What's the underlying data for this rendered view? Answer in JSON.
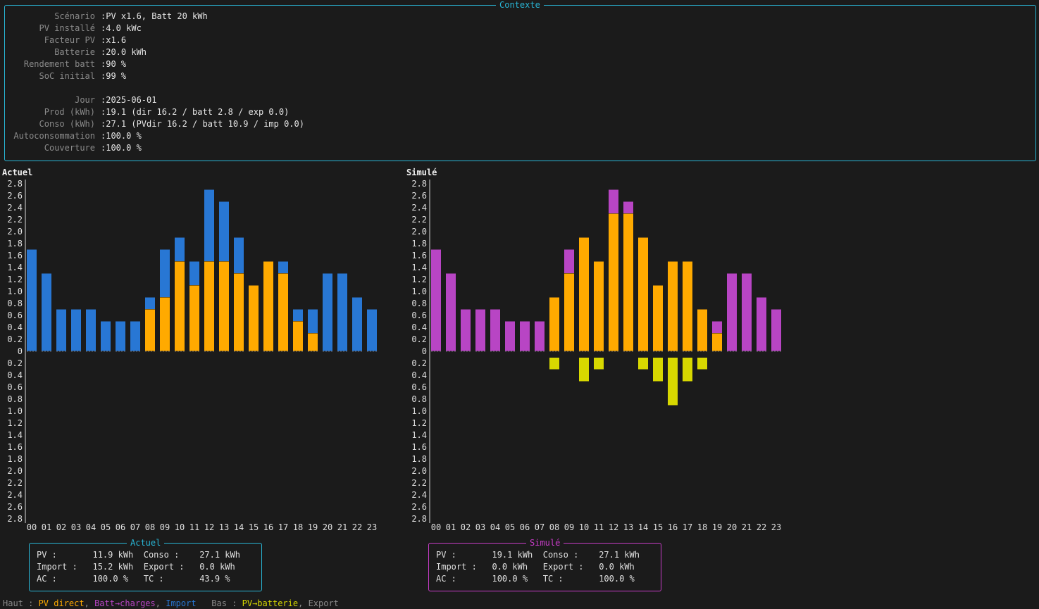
{
  "context": {
    "title": "Contexte",
    "rows": [
      {
        "label": "Scénario",
        "value": ":PV x1.6, Batt 20 kWh"
      },
      {
        "label": "PV installé",
        "value": ":4.0 kWc"
      },
      {
        "label": "Facteur PV",
        "value": ":x1.6"
      },
      {
        "label": "Batterie",
        "value": ":20.0 kWh"
      },
      {
        "label": "Rendement batt",
        "value": ":90 %"
      },
      {
        "label": "SoC initial",
        "value": ":99 %"
      },
      {
        "label": "",
        "value": ""
      },
      {
        "label": "Jour",
        "value": ":2025-06-01"
      },
      {
        "label": "Prod (kWh)",
        "value": ":19.1 (dir 16.2 / batt 2.8 / exp 0.0)"
      },
      {
        "label": "Conso (kWh)",
        "value": ":27.1 (PVdir 16.2 / batt 10.9 / imp 0.0)"
      },
      {
        "label": "Autoconsommation",
        "value": ":100.0 %"
      },
      {
        "label": "Couverture",
        "value": ":100.0 %"
      }
    ]
  },
  "colors": {
    "pv_direct": "#ffaa00",
    "batt_charges": "#b845c4",
    "import": "#2877d4",
    "pv_batterie": "#d8d800",
    "export": "#8a8a8a",
    "accent_actuel": "#29b6d6",
    "accent_simule": "#c83cc8"
  },
  "chart_data": [
    {
      "type": "bar",
      "title": "Actuel",
      "categories": [
        "00",
        "01",
        "02",
        "03",
        "04",
        "05",
        "06",
        "07",
        "08",
        "09",
        "10",
        "11",
        "12",
        "13",
        "14",
        "15",
        "16",
        "17",
        "18",
        "19",
        "20",
        "21",
        "22",
        "23"
      ],
      "ylim": [
        -2.8,
        2.8
      ],
      "y_ticks": [
        "2.8",
        "2.6",
        "2.4",
        "2.2",
        "2.0",
        "1.8",
        "1.6",
        "1.4",
        "1.2",
        "1.0",
        "0.8",
        "0.6",
        "0.4",
        "0.2",
        "0",
        "0.2",
        "0.4",
        "0.6",
        "0.8",
        "1.0",
        "1.2",
        "1.4",
        "1.6",
        "1.8",
        "2.0",
        "2.2",
        "2.4",
        "2.6",
        "2.8"
      ],
      "series": [
        {
          "name": "PV direct",
          "key": "pv_direct",
          "values": [
            0,
            0,
            0,
            0,
            0,
            0,
            0,
            0,
            0.7,
            0.9,
            1.5,
            1.1,
            1.5,
            1.5,
            1.3,
            1.1,
            1.5,
            1.3,
            0.5,
            0.3,
            0,
            0,
            0,
            0
          ]
        },
        {
          "name": "Batt→charges",
          "key": "batt_charges",
          "values": [
            0,
            0,
            0,
            0,
            0,
            0,
            0,
            0,
            0,
            0,
            0,
            0,
            0,
            0,
            0,
            0,
            0,
            0,
            0,
            0,
            0,
            0,
            0,
            0
          ]
        },
        {
          "name": "Import",
          "key": "import",
          "values": [
            1.7,
            1.3,
            0.7,
            0.7,
            0.7,
            0.5,
            0.5,
            0.5,
            0.2,
            0.8,
            0.4,
            0.4,
            1.2,
            1.0,
            0.6,
            0,
            0,
            0.2,
            0.2,
            0.4,
            1.3,
            1.3,
            0.9,
            0.7
          ]
        }
      ],
      "negative_series": [
        {
          "name": "PV→batterie",
          "key": "pv_batterie",
          "values": [
            0,
            0,
            0,
            0,
            0,
            0,
            0,
            0,
            0,
            0,
            0,
            0,
            0,
            0,
            0,
            0,
            0,
            0,
            0,
            0,
            0,
            0,
            0,
            0
          ]
        },
        {
          "name": "Export",
          "key": "export",
          "values": [
            0,
            0,
            0,
            0,
            0,
            0,
            0,
            0,
            0,
            0,
            0,
            0,
            0,
            0,
            0,
            0,
            0,
            0,
            0,
            0,
            0,
            0,
            0,
            0
          ]
        }
      ]
    },
    {
      "type": "bar",
      "title": "Simulé",
      "categories": [
        "00",
        "01",
        "02",
        "03",
        "04",
        "05",
        "06",
        "07",
        "08",
        "09",
        "10",
        "11",
        "12",
        "13",
        "14",
        "15",
        "16",
        "17",
        "18",
        "19",
        "20",
        "21",
        "22",
        "23"
      ],
      "ylim": [
        -2.8,
        2.8
      ],
      "y_ticks": [
        "2.8",
        "2.6",
        "2.4",
        "2.2",
        "2.0",
        "1.8",
        "1.6",
        "1.4",
        "1.2",
        "1.0",
        "0.8",
        "0.6",
        "0.4",
        "0.2",
        "0",
        "0.2",
        "0.4",
        "0.6",
        "0.8",
        "1.0",
        "1.2",
        "1.4",
        "1.6",
        "1.8",
        "2.0",
        "2.2",
        "2.4",
        "2.6",
        "2.8"
      ],
      "series": [
        {
          "name": "PV direct",
          "key": "pv_direct",
          "values": [
            0,
            0,
            0,
            0,
            0,
            0,
            0,
            0,
            0.9,
            1.3,
            1.9,
            1.5,
            2.3,
            2.3,
            1.9,
            1.1,
            1.5,
            1.5,
            0.7,
            0.3,
            0,
            0,
            0,
            0
          ]
        },
        {
          "name": "Batt→charges",
          "key": "batt_charges",
          "values": [
            1.7,
            1.3,
            0.7,
            0.7,
            0.7,
            0.5,
            0.5,
            0.5,
            0,
            0.4,
            0,
            0,
            0.4,
            0.2,
            0,
            0,
            0,
            0,
            0,
            0.2,
            1.3,
            1.3,
            0.9,
            0.7
          ]
        },
        {
          "name": "Import",
          "key": "import",
          "values": [
            0,
            0,
            0,
            0,
            0,
            0,
            0,
            0,
            0,
            0,
            0,
            0,
            0,
            0,
            0,
            0,
            0,
            0,
            0,
            0,
            0,
            0,
            0,
            0
          ]
        }
      ],
      "negative_series": [
        {
          "name": "PV→batterie",
          "key": "pv_batterie",
          "values": [
            0,
            0,
            0,
            0,
            0,
            0,
            0,
            0,
            0.2,
            0,
            0.4,
            0.2,
            0,
            0,
            0.2,
            0.4,
            0.8,
            0.4,
            0.2,
            0,
            0,
            0,
            0,
            0
          ]
        },
        {
          "name": "Export",
          "key": "export",
          "values": [
            0,
            0,
            0,
            0,
            0,
            0,
            0,
            0,
            0,
            0,
            0,
            0,
            0,
            0,
            0,
            0,
            0,
            0,
            0,
            0,
            0,
            0,
            0,
            0
          ]
        }
      ]
    }
  ],
  "summary_actuel": {
    "title": "Actuel",
    "line1": "PV :       11.9 kWh  Conso :    27.1 kWh",
    "line2": "Import :   15.2 kWh  Export :   0.0 kWh",
    "line3": "AC :       100.0 %   TC :       43.9 %"
  },
  "summary_simule": {
    "title": "Simulé",
    "line1": "PV :       19.1 kWh  Conso :    27.1 kWh",
    "line2": "Import :   0.0 kWh   Export :   0.0 kWh",
    "line3": "AC :       100.0 %   TC :       100.0 %"
  },
  "legend": {
    "haut_label": "Haut : ",
    "pv_direct": "PV direct",
    "sep1": ", ",
    "batt_charges": "Batt→charges",
    "sep2": ", ",
    "import": "Import",
    "gap": "   ",
    "bas_label": "Bas : ",
    "pv_batterie": "PV→batterie",
    "sep3": ", ",
    "export": "Export"
  }
}
